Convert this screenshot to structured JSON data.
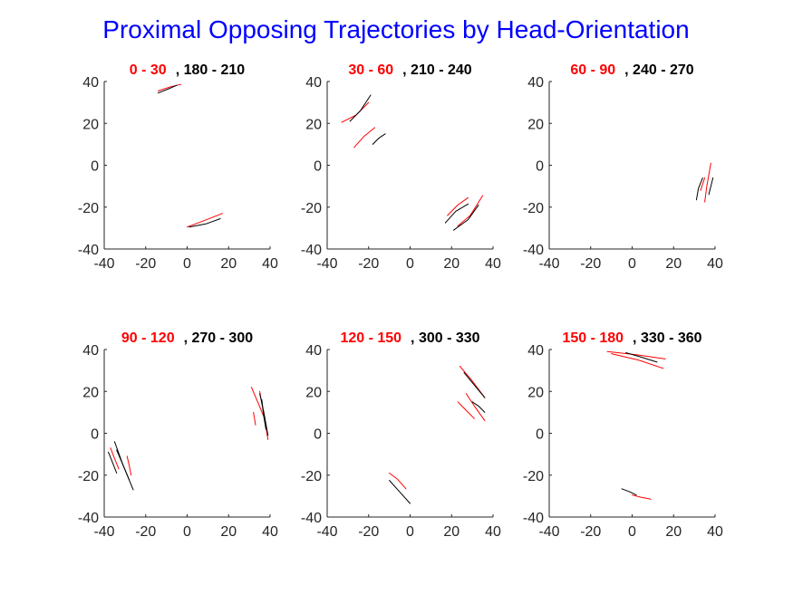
{
  "figure": {
    "title": "Proximal Opposing Trajectories by Head-Orientation",
    "title_color": "#0000ff"
  },
  "colors": {
    "red": "#ff0000",
    "black": "#000000",
    "axis": "#262626"
  },
  "chart_data": [
    {
      "type": "line",
      "title_red": "0  - 30",
      "title_black": ", 180  - 210",
      "xlim": [
        -40,
        40
      ],
      "ylim": [
        -40,
        40
      ],
      "xticks": [
        "-40",
        "-20",
        "0",
        "20",
        "40"
      ],
      "yticks": [
        "40",
        "20",
        "0",
        "-20",
        "-40"
      ],
      "series": [
        {
          "color": "red",
          "points": [
            [
              -14,
              35.5
            ],
            [
              -8,
              37.5
            ],
            [
              -3,
              38.6
            ]
          ]
        },
        {
          "color": "black",
          "points": [
            [
              -14,
              34.5
            ],
            [
              -9,
              36.5
            ],
            [
              -5,
              38.2
            ]
          ]
        },
        {
          "color": "red",
          "points": [
            [
              0,
              -29.5
            ],
            [
              8,
              -26.5
            ],
            [
              17,
              -23
            ]
          ]
        },
        {
          "color": "black",
          "points": [
            [
              1,
              -29.5
            ],
            [
              9,
              -28
            ],
            [
              16,
              -25.5
            ]
          ]
        }
      ]
    },
    {
      "type": "line",
      "title_red": "30  - 60",
      "title_black": ", 210  - 240",
      "xlim": [
        -40,
        40
      ],
      "ylim": [
        -40,
        40
      ],
      "xticks": [
        "-40",
        "-20",
        "0",
        "20",
        "40"
      ],
      "yticks": [
        "40",
        "20",
        "0",
        "-20",
        "-40"
      ],
      "series": [
        {
          "color": "red",
          "points": [
            [
              -33,
              20.5
            ],
            [
              -26,
              24
            ],
            [
              -20,
              30
            ]
          ]
        },
        {
          "color": "black",
          "points": [
            [
              -29,
              21
            ],
            [
              -24,
              26
            ],
            [
              -19,
              33.5
            ]
          ]
        },
        {
          "color": "red",
          "points": [
            [
              -27,
              8.5
            ],
            [
              -22,
              14
            ],
            [
              -17,
              18
            ]
          ]
        },
        {
          "color": "black",
          "points": [
            [
              -18,
              10
            ],
            [
              -15,
              13
            ],
            [
              -12,
              15
            ]
          ]
        },
        {
          "color": "red",
          "points": [
            [
              18,
              -24
            ],
            [
              23,
              -19
            ],
            [
              28,
              -15.5
            ]
          ]
        },
        {
          "color": "black",
          "points": [
            [
              17,
              -27.5
            ],
            [
              22,
              -22
            ],
            [
              28,
              -18.5
            ]
          ]
        },
        {
          "color": "red",
          "points": [
            [
              23,
              -29
            ],
            [
              29,
              -24
            ],
            [
              35,
              -14.5
            ]
          ]
        },
        {
          "color": "black",
          "points": [
            [
              21,
              -31
            ],
            [
              28,
              -26
            ],
            [
              33,
              -19
            ]
          ]
        }
      ]
    },
    {
      "type": "line",
      "title_red": "60  - 90",
      "title_black": ", 240  - 270",
      "xlim": [
        -40,
        40
      ],
      "ylim": [
        -40,
        40
      ],
      "xticks": [
        "-40",
        "-20",
        "0",
        "20",
        "40"
      ],
      "yticks": [
        "40",
        "20",
        "0",
        "-20",
        "-40"
      ],
      "series": [
        {
          "color": "red",
          "points": [
            [
              35,
              -17.5
            ],
            [
              36,
              -10
            ],
            [
              38,
              1
            ]
          ]
        },
        {
          "color": "red",
          "points": [
            [
              33,
              -12
            ],
            [
              34,
              -9
            ],
            [
              35,
              -6
            ]
          ]
        },
        {
          "color": "black",
          "points": [
            [
              31,
              -16.5
            ],
            [
              32,
              -11
            ],
            [
              34,
              -6
            ]
          ]
        },
        {
          "color": "black",
          "points": [
            [
              37,
              -14
            ],
            [
              38,
              -10
            ],
            [
              39,
              -6
            ]
          ]
        }
      ]
    },
    {
      "type": "line",
      "title_red": "90  - 120",
      "title_black": ", 270  - 300",
      "xlim": [
        -40,
        40
      ],
      "ylim": [
        -40,
        40
      ],
      "xticks": [
        "-40",
        "-20",
        "0",
        "20",
        "40"
      ],
      "yticks": [
        "40",
        "20",
        "0",
        "-20",
        "-40"
      ],
      "series": [
        {
          "color": "red",
          "points": [
            [
              -37,
              -7
            ],
            [
              -35,
              -12
            ],
            [
              -33,
              -17
            ]
          ]
        },
        {
          "color": "red",
          "points": [
            [
              -29,
              -11
            ],
            [
              -28,
              -15
            ],
            [
              -27,
              -20
            ]
          ]
        },
        {
          "color": "black",
          "points": [
            [
              -38,
              -9
            ],
            [
              -36,
              -14
            ],
            [
              -34,
              -19
            ]
          ]
        },
        {
          "color": "black",
          "points": [
            [
              -35,
              -4
            ],
            [
              -31,
              -15
            ],
            [
              -26,
              -27
            ]
          ]
        },
        {
          "color": "black",
          "points": [
            [
              -34,
              -8
            ],
            [
              -31,
              -15
            ],
            [
              -28,
              -22
            ]
          ]
        },
        {
          "color": "red",
          "points": [
            [
              31,
              22
            ],
            [
              34,
              15
            ],
            [
              37,
              8
            ]
          ]
        },
        {
          "color": "red",
          "points": [
            [
              35,
              20
            ],
            [
              37,
              9
            ],
            [
              39,
              -3
            ]
          ]
        },
        {
          "color": "red",
          "points": [
            [
              32,
              10
            ],
            [
              32.5,
              7
            ],
            [
              33,
              4
            ]
          ]
        },
        {
          "color": "black",
          "points": [
            [
              35,
              19
            ],
            [
              37,
              10
            ],
            [
              39,
              -1
            ]
          ]
        },
        {
          "color": "black",
          "points": [
            [
              36,
              16
            ],
            [
              37,
              8
            ],
            [
              38,
              2
            ]
          ]
        }
      ]
    },
    {
      "type": "line",
      "title_red": "120  - 150",
      "title_black": ", 300  - 330",
      "xlim": [
        -40,
        40
      ],
      "ylim": [
        -40,
        40
      ],
      "xticks": [
        "-40",
        "-20",
        "0",
        "20",
        "40"
      ],
      "yticks": [
        "40",
        "20",
        "0",
        "-20",
        "-40"
      ],
      "series": [
        {
          "color": "red",
          "points": [
            [
              24,
              32
            ],
            [
              30,
              25
            ],
            [
              36,
              17
            ]
          ]
        },
        {
          "color": "black",
          "points": [
            [
              26,
              29
            ],
            [
              31,
              23
            ],
            [
              36,
              17
            ]
          ]
        },
        {
          "color": "red",
          "points": [
            [
              23,
              15
            ],
            [
              27,
              11
            ],
            [
              31,
              7
            ]
          ]
        },
        {
          "color": "red",
          "points": [
            [
              27,
              19
            ],
            [
              31,
              13
            ],
            [
              36,
              6
            ]
          ]
        },
        {
          "color": "black",
          "points": [
            [
              30,
              15
            ],
            [
              33,
              13
            ],
            [
              36,
              10
            ]
          ]
        },
        {
          "color": "red",
          "points": [
            [
              -10,
              -19
            ],
            [
              -6,
              -22
            ],
            [
              -2,
              -26.5
            ]
          ]
        },
        {
          "color": "black",
          "points": [
            [
              -10,
              -22.5
            ],
            [
              -5,
              -28
            ],
            [
              0,
              -33.5
            ]
          ]
        }
      ]
    },
    {
      "type": "line",
      "title_red": "150  - 180",
      "title_black": ", 330  - 360",
      "xlim": [
        -40,
        40
      ],
      "ylim": [
        -40,
        40
      ],
      "xticks": [
        "-40",
        "-20",
        "0",
        "20",
        "40"
      ],
      "yticks": [
        "40",
        "20",
        "0",
        "-20",
        "-40"
      ],
      "series": [
        {
          "color": "red",
          "points": [
            [
              -12,
              39
            ],
            [
              2,
              37.5
            ],
            [
              16,
              35.5
            ]
          ]
        },
        {
          "color": "red",
          "points": [
            [
              -10,
              38
            ],
            [
              3,
              35
            ],
            [
              15,
              31
            ]
          ]
        },
        {
          "color": "black",
          "points": [
            [
              -3,
              38.5
            ],
            [
              4,
              36.5
            ],
            [
              12,
              34
            ]
          ]
        },
        {
          "color": "black",
          "points": [
            [
              -5,
              -26.5
            ],
            [
              -1,
              -28
            ],
            [
              2,
              -29.5
            ]
          ]
        },
        {
          "color": "red",
          "points": [
            [
              0,
              -29.5
            ],
            [
              4,
              -30.5
            ],
            [
              9,
              -31.5
            ]
          ]
        }
      ]
    }
  ]
}
